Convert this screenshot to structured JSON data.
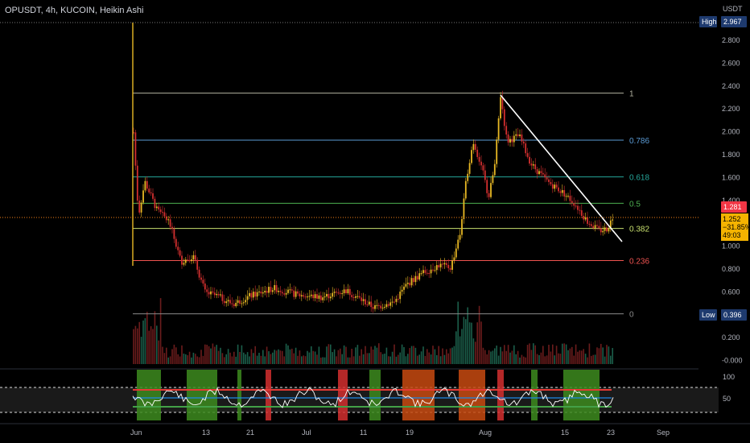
{
  "header": {
    "title": "OPUSDT, 4h, KUCOIN, Heikin Ashi"
  },
  "price_axis": {
    "currency": "USDT",
    "ticks": [
      "2.800",
      "2.600",
      "2.400",
      "2.200",
      "2.000",
      "1.800",
      "1.600",
      "1.400",
      "1.200",
      "1.000",
      "0.800",
      "0.600",
      "0.400",
      "0.200",
      "-0.000"
    ],
    "high_label": "High",
    "high_value": "2.967",
    "low_label": "Low",
    "low_value": "0.396",
    "current_price": "1.281",
    "box_lines": [
      "1.252",
      "−31.85%",
      "49:03"
    ]
  },
  "osc_axis": {
    "ticks": [
      "100",
      "50"
    ]
  },
  "time_axis": {
    "labels": [
      "Jun",
      "13",
      "21",
      "Jul",
      "11",
      "19",
      "Aug",
      "15",
      "23",
      "Sep"
    ]
  },
  "fib_levels": [
    {
      "label": "1",
      "value": 2.32,
      "color": "#b2b2a0"
    },
    {
      "label": "0.786",
      "value": 1.91,
      "color": "#5b9bd5"
    },
    {
      "label": "0.618",
      "value": 1.59,
      "color": "#26a69a"
    },
    {
      "label": "0.5",
      "value": 1.36,
      "color": "#4caf50"
    },
    {
      "label": "0.382",
      "value": 1.14,
      "color": "#c8e06e"
    },
    {
      "label": "0.236",
      "value": 0.86,
      "color": "#ef5350"
    },
    {
      "label": "0",
      "value": 0.396,
      "color": "#8a8a8a"
    }
  ],
  "colors": {
    "up": "#e8b824",
    "down": "#d32f2f",
    "accent": "#f23645"
  }
}
